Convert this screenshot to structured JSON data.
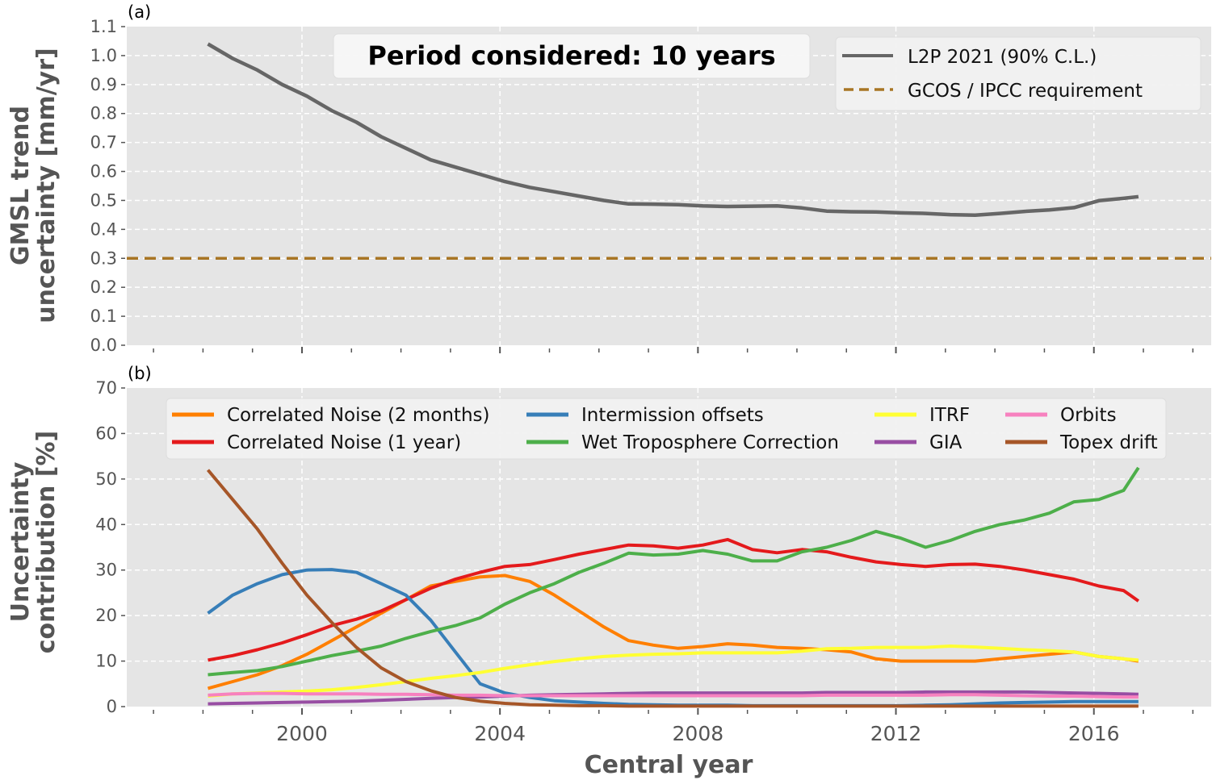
{
  "chart_data": [
    {
      "panel": "a",
      "type": "line",
      "panel_label": "(a)",
      "title": "",
      "xlabel": "",
      "ylabel_lines": [
        "GMSL trend",
        "uncertainty [mm/yr]"
      ],
      "xlim": [
        1996.46,
        2018.37
      ],
      "ylim": [
        0.0,
        1.1
      ],
      "yticks": [
        "0.0",
        "0.1",
        "0.2",
        "0.3",
        "0.4",
        "0.5",
        "0.6",
        "0.7",
        "0.8",
        "0.9",
        "1.0",
        "1.1"
      ],
      "ytick_values": [
        0.0,
        0.1,
        0.2,
        0.3,
        0.4,
        0.5,
        0.6,
        0.7,
        0.8,
        0.9,
        1.0,
        1.1
      ],
      "xtick_values": [
        2000,
        2004,
        2008,
        2012,
        2016
      ],
      "xminor_step": 1,
      "grid": true,
      "annotation": "Period considered: 10 years",
      "legend_position": "top-right",
      "series": [
        {
          "name": "L2P 2021 (90% C.L.)",
          "color": "#666666",
          "style": "solid",
          "x": [
            1998.1,
            1998.6,
            1999.1,
            1999.6,
            2000.1,
            2000.6,
            2001.1,
            2001.6,
            2002.1,
            2002.6,
            2003.1,
            2003.6,
            2004.1,
            2004.6,
            2005.1,
            2005.6,
            2006.1,
            2006.6,
            2007.1,
            2007.6,
            2008.1,
            2008.6,
            2009.1,
            2009.6,
            2010.1,
            2010.6,
            2011.1,
            2011.6,
            2012.1,
            2012.6,
            2013.1,
            2013.6,
            2014.1,
            2014.6,
            2015.1,
            2015.6,
            2016.1,
            2016.6,
            2016.9
          ],
          "values": [
            1.04,
            0.99,
            0.95,
            0.9,
            0.86,
            0.81,
            0.77,
            0.72,
            0.68,
            0.64,
            0.615,
            0.59,
            0.565,
            0.545,
            0.53,
            0.515,
            0.5,
            0.488,
            0.487,
            0.485,
            0.481,
            0.479,
            0.48,
            0.481,
            0.474,
            0.463,
            0.461,
            0.46,
            0.457,
            0.455,
            0.451,
            0.449,
            0.455,
            0.462,
            0.467,
            0.475,
            0.499,
            0.507,
            0.513
          ]
        },
        {
          "name": "GCOS / IPCC requirement",
          "color": "#a87524",
          "style": "dashed",
          "x": [
            1996.46,
            2018.37
          ],
          "values": [
            0.3,
            0.3
          ]
        }
      ]
    },
    {
      "panel": "b",
      "type": "line",
      "panel_label": "(b)",
      "title": "",
      "xlabel": "Central year",
      "ylabel_lines": [
        "Uncertainty",
        "contribution [%]"
      ],
      "xlim": [
        1996.46,
        2018.37
      ],
      "ylim": [
        0,
        70
      ],
      "yticks": [
        "0",
        "10",
        "20",
        "30",
        "40",
        "50",
        "60",
        "70"
      ],
      "ytick_values": [
        0,
        10,
        20,
        30,
        40,
        50,
        60,
        70
      ],
      "xticks": [
        "2000",
        "2004",
        "2008",
        "2012",
        "2016"
      ],
      "xtick_values": [
        2000,
        2004,
        2008,
        2012,
        2016
      ],
      "xminor_step": 1,
      "grid": true,
      "legend_position": "top",
      "legend_columns": 4,
      "x": [
        1998.1,
        1998.6,
        1999.1,
        1999.6,
        2000.1,
        2000.6,
        2001.1,
        2001.6,
        2002.1,
        2002.6,
        2003.1,
        2003.6,
        2004.1,
        2004.6,
        2005.1,
        2005.6,
        2006.1,
        2006.6,
        2007.1,
        2007.6,
        2008.1,
        2008.6,
        2009.1,
        2009.6,
        2010.1,
        2010.6,
        2011.1,
        2011.6,
        2012.1,
        2012.6,
        2013.1,
        2013.6,
        2014.1,
        2014.6,
        2015.1,
        2015.6,
        2016.1,
        2016.6,
        2016.9
      ],
      "series": [
        {
          "name": "Correlated Noise (2 months)",
          "color": "#ff7f00",
          "values": [
            4.0,
            5.5,
            7.0,
            9.0,
            11.5,
            14.5,
            17.5,
            20.5,
            23.5,
            26.5,
            27.5,
            28.5,
            28.8,
            27.5,
            24.5,
            21.0,
            17.5,
            14.5,
            13.5,
            12.8,
            13.2,
            13.8,
            13.5,
            13.0,
            12.8,
            12.5,
            12.0,
            10.5,
            10.0,
            10.0,
            10.0,
            10.0,
            10.5,
            11.0,
            11.5,
            12.0,
            11.0,
            10.5,
            10.0
          ]
        },
        {
          "name": "Correlated Noise (1 year)",
          "color": "#e41a1c",
          "values": [
            10.2,
            11.2,
            12.5,
            14.0,
            15.8,
            17.8,
            19.2,
            21.0,
            23.5,
            26.0,
            28.0,
            29.5,
            30.8,
            31.2,
            32.3,
            33.5,
            34.5,
            35.5,
            35.3,
            34.8,
            35.5,
            36.7,
            34.5,
            33.8,
            34.5,
            34.0,
            32.8,
            31.8,
            31.2,
            30.8,
            31.2,
            31.3,
            30.8,
            30.0,
            29.0,
            28.0,
            26.5,
            25.5,
            23.2
          ]
        },
        {
          "name": "Intermission offsets",
          "color": "#377eb8",
          "values": [
            20.5,
            24.5,
            27.0,
            29.0,
            30.0,
            30.1,
            29.5,
            27.0,
            24.5,
            19.0,
            12.0,
            5.0,
            3.0,
            2.0,
            1.3,
            1.0,
            0.7,
            0.5,
            0.4,
            0.3,
            0.3,
            0.3,
            0.2,
            0.2,
            0.2,
            0.2,
            0.2,
            0.2,
            0.2,
            0.3,
            0.4,
            0.6,
            0.8,
            0.9,
            1.0,
            1.1,
            1.1,
            1.1,
            1.1
          ]
        },
        {
          "name": "Wet Troposphere Correction",
          "color": "#4daf4a",
          "values": [
            7.0,
            7.5,
            7.9,
            8.8,
            10.0,
            11.2,
            12.2,
            13.3,
            15.0,
            16.5,
            17.8,
            19.5,
            22.5,
            25.0,
            27.0,
            29.5,
            31.5,
            33.7,
            33.3,
            33.5,
            34.3,
            33.5,
            32.0,
            32.0,
            34.0,
            35.0,
            36.5,
            38.5,
            37.0,
            35.0,
            36.5,
            38.5,
            40.0,
            41.0,
            42.5,
            45.0,
            45.5,
            47.5,
            52.5
          ]
        },
        {
          "name": "ITRF",
          "color": "#ffff33",
          "values": [
            2.3,
            2.8,
            3.0,
            3.2,
            3.4,
            3.7,
            4.2,
            4.8,
            5.5,
            6.2,
            6.8,
            7.5,
            8.4,
            9.2,
            9.9,
            10.5,
            11.0,
            11.3,
            11.5,
            11.6,
            11.8,
            11.8,
            11.8,
            11.8,
            12.2,
            12.7,
            12.8,
            13.0,
            13.0,
            13.0,
            13.3,
            13.1,
            12.8,
            12.5,
            12.3,
            12.0,
            11.0,
            10.5,
            10.2
          ]
        },
        {
          "name": "GIA",
          "color": "#984ea3",
          "values": [
            0.6,
            0.7,
            0.8,
            0.9,
            1.0,
            1.1,
            1.2,
            1.4,
            1.6,
            1.8,
            2.0,
            2.1,
            2.3,
            2.5,
            2.6,
            2.7,
            2.8,
            2.9,
            3.0,
            3.0,
            3.0,
            3.0,
            3.0,
            3.0,
            3.0,
            3.1,
            3.1,
            3.1,
            3.1,
            3.2,
            3.2,
            3.2,
            3.2,
            3.2,
            3.1,
            3.0,
            2.9,
            2.8,
            2.7
          ]
        },
        {
          "name": "Orbits",
          "color": "#f781bf",
          "values": [
            2.5,
            2.8,
            2.9,
            2.9,
            2.8,
            2.8,
            2.8,
            2.7,
            2.7,
            2.6,
            2.5,
            2.5,
            2.4,
            2.4,
            2.4,
            2.4,
            2.4,
            2.4,
            2.4,
            2.4,
            2.4,
            2.4,
            2.4,
            2.4,
            2.4,
            2.5,
            2.5,
            2.5,
            2.5,
            2.5,
            2.6,
            2.6,
            2.5,
            2.4,
            2.3,
            2.3,
            2.2,
            2.1,
            2.1
          ]
        },
        {
          "name": "Topex drift",
          "color": "#a65628",
          "values": [
            52.0,
            45.5,
            39.0,
            31.5,
            24.5,
            18.5,
            13.0,
            8.5,
            5.5,
            3.5,
            2.0,
            1.2,
            0.7,
            0.4,
            0.3,
            0.2,
            0.2,
            0.1,
            0.1,
            0.1,
            0.1,
            0.1,
            0.1,
            0.1,
            0.1,
            0.1,
            0.1,
            0.1,
            0.1,
            0.1,
            0.1,
            0.1,
            0.1,
            0.1,
            0.1,
            0.1,
            0.1,
            0.1,
            0.1
          ]
        }
      ]
    }
  ]
}
